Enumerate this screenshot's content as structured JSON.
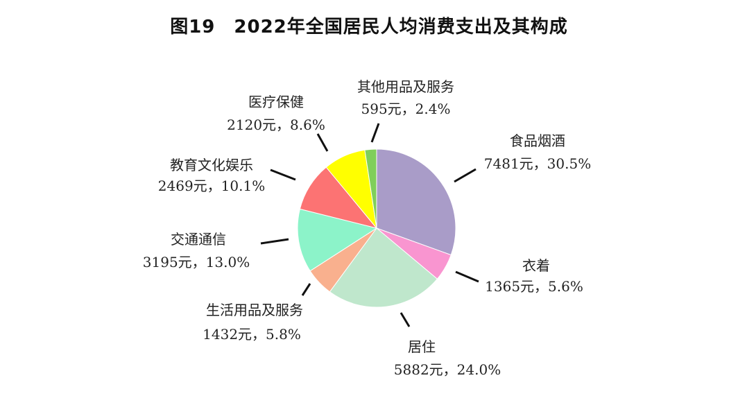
{
  "chart_data": {
    "type": "pie",
    "title": "图19　2022年全国居民人均消费支出及其构成",
    "unit": "元",
    "start": "top",
    "direction": "clockwise",
    "slices": [
      {
        "name": "食品烟酒",
        "value": 7481,
        "percent": 30.5,
        "color": "#a99cc8"
      },
      {
        "name": "衣着",
        "value": 1365,
        "percent": 5.6,
        "color": "#f995d0"
      },
      {
        "name": "居住",
        "value": 5882,
        "percent": 24.0,
        "color": "#bfe7cc"
      },
      {
        "name": "生活用品及服务",
        "value": 1432,
        "percent": 5.8,
        "color": "#f9b08e"
      },
      {
        "name": "交通通信",
        "value": 3195,
        "percent": 13.0,
        "color": "#8cf3c9"
      },
      {
        "name": "教育文化娱乐",
        "value": 2469,
        "percent": 10.1,
        "color": "#fc7373"
      },
      {
        "name": "医疗保健",
        "value": 2120,
        "percent": 8.6,
        "color": "#ffff00"
      },
      {
        "name": "其他用品及服务",
        "value": 595,
        "percent": 2.4,
        "color": "#80cf5a"
      }
    ]
  }
}
